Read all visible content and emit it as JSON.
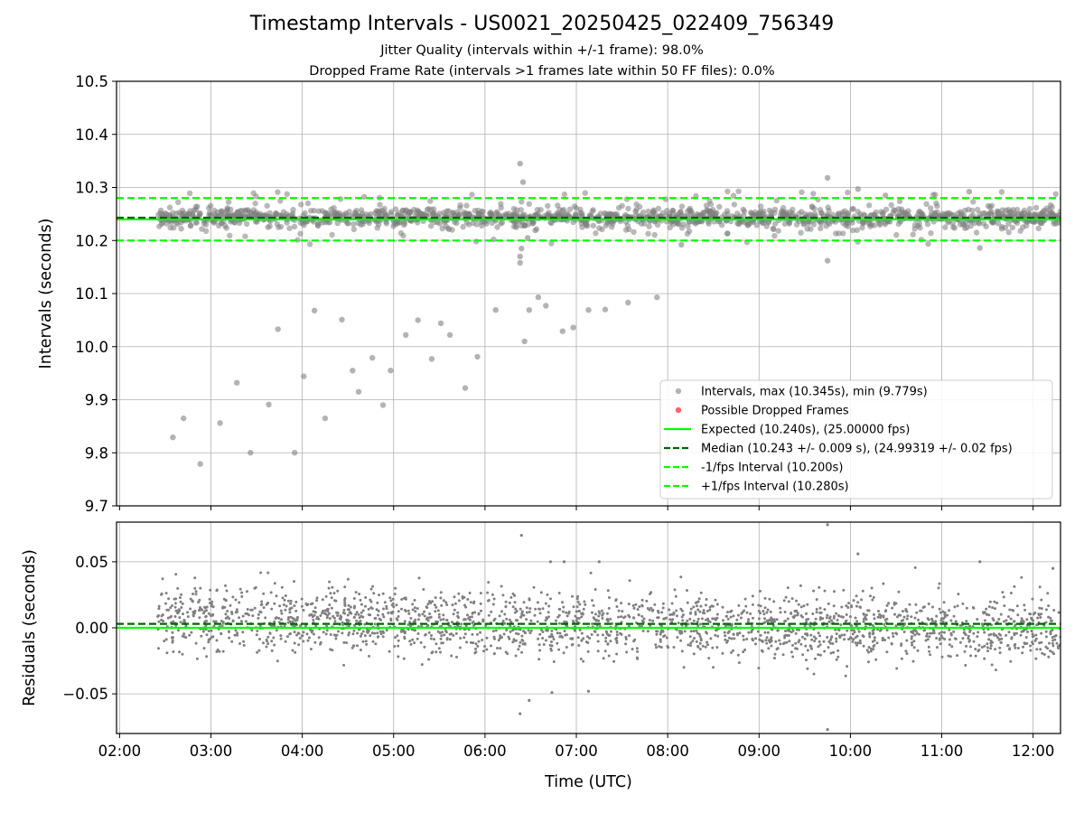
{
  "title": "Timestamp Intervals - US0021_20250425_022409_756349",
  "subtitle_lines": [
    "Jitter Quality (intervals within +/-1 frame): 98.0%",
    "Dropped Frame Rate (intervals >1 frames late within 50 FF files): 0.0%"
  ],
  "colors": {
    "points": "#808080",
    "dropped": "#ff4040",
    "expected": "#00ff00",
    "median": "#006400",
    "interval": "#00ff00",
    "grid": "#b0b0b0"
  },
  "chart_data": [
    {
      "type": "scatter",
      "panel": "intervals",
      "xlabel": "",
      "ylabel": "Intervals (seconds)",
      "x_ticks": [
        "02:00",
        "03:00",
        "04:00",
        "05:00",
        "06:00",
        "07:00",
        "08:00",
        "09:00",
        "10:00",
        "11:00",
        "12:00"
      ],
      "xlim": [
        "01:58",
        "12:18"
      ],
      "ylim": [
        9.7,
        10.5
      ],
      "y_ticks": [
        "9.7",
        "9.8",
        "9.9",
        "10.0",
        "10.1",
        "10.2",
        "10.3",
        "10.4",
        "10.5"
      ],
      "grid": true,
      "legend_position": "lower-right",
      "legend": [
        {
          "label": "Intervals, max (10.345s), min (9.779s)",
          "kind": "point",
          "color": "#808080"
        },
        {
          "label": "Possible Dropped Frames",
          "kind": "point",
          "color": "#ff4040"
        },
        {
          "label": "Expected (10.240s), (25.00000 fps)",
          "kind": "line",
          "color": "#00ff00"
        },
        {
          "label": "Median (10.243 +/- 0.009 s), (24.99319 +/- 0.02 fps)",
          "kind": "dashed",
          "color": "#006400"
        },
        {
          "label": "-1/fps Interval (10.200s)",
          "kind": "dashed",
          "color": "#00ff00"
        },
        {
          "label": "+1/fps Interval (10.280s)",
          "kind": "dashed",
          "color": "#00ff00"
        }
      ],
      "reference_lines": [
        {
          "name": "Expected",
          "y": 10.24,
          "style": "solid",
          "color": "#00ff00"
        },
        {
          "name": "Median",
          "y": 10.243,
          "style": "dashed",
          "color": "#006400"
        },
        {
          "name": "-1/fps Interval",
          "y": 10.2,
          "style": "dashed",
          "color": "#00ff00"
        },
        {
          "name": "+1/fps Interval",
          "y": 10.28,
          "style": "dashed",
          "color": "#00ff00"
        }
      ],
      "series": [
        {
          "name": "Intervals",
          "band": {
            "x_start": "02:25",
            "x_end": "12:18",
            "center": 10.243,
            "spread": 0.009,
            "count": 1500
          },
          "x": [
            "02:35",
            "02:42",
            "02:53",
            "03:06",
            "03:17",
            "03:26",
            "03:38",
            "03:44",
            "03:55",
            "04:01",
            "04:08",
            "04:15",
            "04:26",
            "04:33",
            "04:37",
            "04:46",
            "04:53",
            "04:58",
            "05:08",
            "05:16",
            "05:25",
            "05:31",
            "05:37",
            "05:47",
            "05:55",
            "06:07",
            "06:23",
            "06:23",
            "06:24",
            "06:26",
            "06:29",
            "06:35",
            "06:40",
            "06:51",
            "06:58",
            "07:08",
            "07:19",
            "07:34",
            "07:53",
            "08:09",
            "06:23",
            "06:25",
            "06:28",
            "09:45",
            "09:45",
            "10:05",
            "10:23",
            "11:18",
            "11:25"
          ],
          "y": [
            9.829,
            9.865,
            9.779,
            9.856,
            9.932,
            9.8,
            9.891,
            10.033,
            9.8,
            9.944,
            10.068,
            9.865,
            10.051,
            9.955,
            9.915,
            9.979,
            9.89,
            9.955,
            10.022,
            10.05,
            9.977,
            10.044,
            10.022,
            9.922,
            9.981,
            10.069,
            10.158,
            10.17,
            10.185,
            10.01,
            10.069,
            10.093,
            10.077,
            10.029,
            10.036,
            10.069,
            10.07,
            10.083,
            10.093,
            10.192,
            10.345,
            10.31,
            10.205,
            10.318,
            10.162,
            10.297,
            10.285,
            10.292,
            10.186
          ]
        }
      ]
    },
    {
      "type": "scatter",
      "panel": "residuals",
      "xlabel": "Time (UTC)",
      "ylabel": "Residuals (seconds)",
      "x_ticks": [
        "02:00",
        "03:00",
        "04:00",
        "05:00",
        "06:00",
        "07:00",
        "08:00",
        "09:00",
        "10:00",
        "11:00",
        "12:00"
      ],
      "xlim": [
        "01:58",
        "12:18"
      ],
      "ylim": [
        -0.08,
        0.08
      ],
      "y_ticks": [
        "−0.05",
        "0.00",
        "0.05"
      ],
      "y_tick_values": [
        -0.05,
        0.0,
        0.05
      ],
      "grid": true,
      "reference_lines": [
        {
          "name": "Expected",
          "y": 0.0,
          "style": "solid",
          "color": "#00ff00"
        },
        {
          "name": "Median",
          "y": 0.003,
          "style": "dashed",
          "color": "#006400"
        }
      ],
      "series": [
        {
          "name": "Residuals",
          "band": {
            "x_start": "02:25",
            "x_end": "12:18",
            "start_center": 0.008,
            "end_center": -0.002,
            "spread": 0.012,
            "count": 2200
          },
          "x": [
            "06:24",
            "06:23",
            "06:29",
            "06:43",
            "06:44",
            "06:52",
            "07:08",
            "07:15",
            "09:45",
            "09:45",
            "10:05",
            "11:25",
            "12:13"
          ],
          "y": [
            0.07,
            -0.065,
            -0.055,
            0.05,
            -0.049,
            0.05,
            -0.048,
            0.05,
            0.078,
            -0.077,
            0.056,
            0.05,
            0.045
          ]
        }
      ]
    }
  ]
}
